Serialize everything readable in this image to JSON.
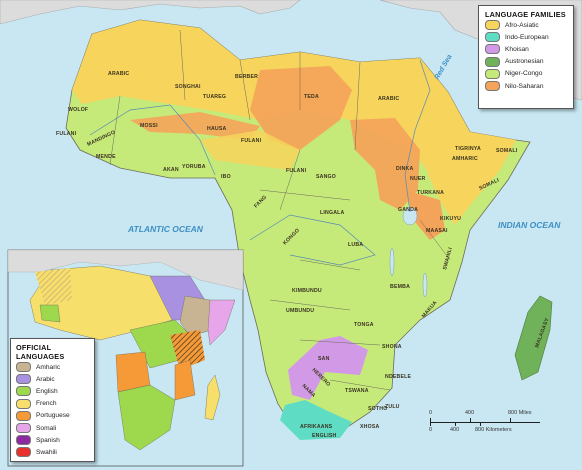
{
  "map": {
    "oceans": [
      "ATLANTIC OCEAN",
      "INDIAN OCEAN"
    ],
    "seas": [
      "Red Sea"
    ]
  },
  "languages": {
    "north": [
      "ARABIC",
      "BERBER",
      "SONGHAI",
      "TUAREG",
      "TEDA",
      "ARABIC"
    ],
    "west": [
      "WOLOF",
      "FULANI",
      "MANDINGO",
      "MENDE",
      "MOSSI",
      "HAUSA",
      "FULANI",
      "YORUBA",
      "AKAN",
      "IBO",
      "FULANI"
    ],
    "central": [
      "SANGO",
      "FANG",
      "LINGALA",
      "KONGO",
      "LUBA",
      "KIMBUNDU",
      "UMBUNDU",
      "BEMBA",
      "TONGA",
      "SHONA",
      "SAN",
      "HERERO",
      "NAMA",
      "TSWANA",
      "NDEBELE",
      "SOTHO",
      "ZULU",
      "XHOSA",
      "AFRIKAANS",
      "ENGLISH"
    ],
    "east": [
      "TIGRINYA",
      "AMHARIC",
      "SOMALI",
      "SOMALI",
      "DINKA",
      "NUER",
      "TURKANA",
      "GANDA",
      "MAASAI",
      "KIKUYU",
      "SWAHILI",
      "MAKUA",
      "MALAGASY"
    ]
  },
  "family_legend": {
    "title": "LANGUAGE FAMILIES",
    "items": [
      {
        "label": "Afro-Asiatic",
        "color": "#f7d45c"
      },
      {
        "label": "Indo-European",
        "color": "#5fdcc4"
      },
      {
        "label": "Khoisan",
        "color": "#d29ae6"
      },
      {
        "label": "Austronesian",
        "color": "#6fb25a"
      },
      {
        "label": "Niger-Congo",
        "color": "#c6ea7a"
      },
      {
        "label": "Nilo-Saharan",
        "color": "#f4a45a"
      }
    ]
  },
  "official_legend": {
    "title": "OFFICIAL LANGUAGES",
    "items": [
      {
        "label": "Amharic",
        "color": "#c8b493"
      },
      {
        "label": "Arabic",
        "color": "#a891e0"
      },
      {
        "label": "English",
        "color": "#9dd84d"
      },
      {
        "label": "French",
        "color": "#f6df6a"
      },
      {
        "label": "Portuguese",
        "color": "#f59a36"
      },
      {
        "label": "Somali",
        "color": "#e6a6e9"
      },
      {
        "label": "Spanish",
        "color": "#8c2aa0"
      },
      {
        "label": "Swahili",
        "color": "#e8322c"
      }
    ]
  },
  "scale": {
    "miles": [
      "0",
      "400",
      "800 Miles"
    ],
    "km": [
      "0",
      "400",
      "800 Kilometers"
    ]
  }
}
